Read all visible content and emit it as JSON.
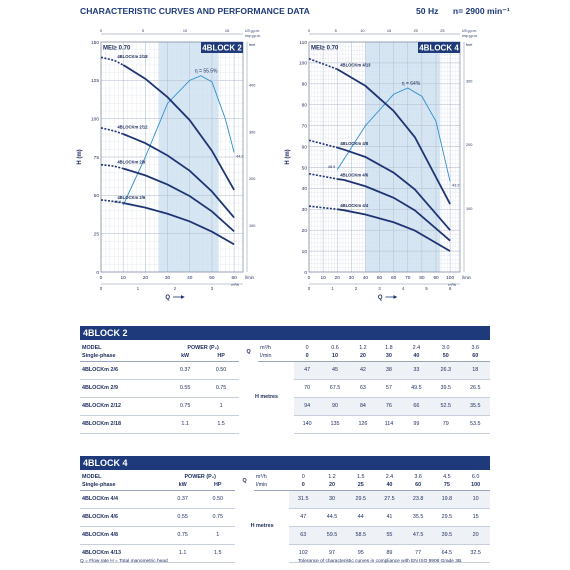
{
  "header": {
    "title": "CHARACTERISTIC CURVES AND PERFORMANCE DATA",
    "frequency": "50 Hz",
    "speed": "n= 2900 min⁻¹"
  },
  "colors": {
    "curve": "#1f3573",
    "eff": "#2e8fcf",
    "band": "#1e3a7a",
    "zone": "#c9deef"
  },
  "chart_data": [
    {
      "type": "line",
      "title": "4BLOCK 2",
      "mei": "MEI≥ 0.70",
      "ylabel": "H (m)",
      "xlabel": "Q",
      "x_unit": "l/min",
      "x_unit2": "m³/h",
      "top_unit_imp": "US g.p.m.",
      "top_unit_imp2": "Imp g.p.m.",
      "right_unit": "feet",
      "xlim": [
        0,
        64
      ],
      "ylim": [
        0,
        150
      ],
      "x_ticks": [
        0,
        10,
        20,
        30,
        40,
        50,
        60
      ],
      "y_ticks": [
        0,
        25,
        50,
        75,
        100,
        125,
        150
      ],
      "m3h_ticks": [
        0,
        1,
        2,
        3
      ],
      "usgpm_ticks": [
        0,
        5,
        10,
        15
      ],
      "feet_ticks": [
        100,
        200,
        300,
        400
      ],
      "zone": [
        26,
        53
      ],
      "efficiency": {
        "label": "η = 55.5%",
        "left": "43.6",
        "right": "44.2",
        "x": [
          10,
          20,
          30,
          40,
          45,
          50,
          56,
          60
        ],
        "y": [
          43.6,
          75,
          110,
          125,
          128,
          124,
          100,
          78
        ]
      },
      "series": [
        {
          "name": "4BLOCKm 2/18",
          "x": [
            0,
            6,
            10,
            20,
            30,
            40,
            50,
            60
          ],
          "y": [
            140,
            138,
            135,
            126,
            114,
            99,
            79,
            53.5
          ]
        },
        {
          "name": "4BLOCKm 2/12",
          "x": [
            0,
            6,
            10,
            20,
            30,
            40,
            50,
            60
          ],
          "y": [
            94,
            92,
            90,
            84,
            76,
            66,
            52.5,
            35.5
          ]
        },
        {
          "name": "4BLOCKm 2/9",
          "x": [
            0,
            6,
            10,
            20,
            30,
            40,
            50,
            60
          ],
          "y": [
            70,
            69,
            67.5,
            63,
            57,
            49.5,
            39.5,
            26.5
          ]
        },
        {
          "name": "4BLOCKm 2/6",
          "x": [
            0,
            6,
            10,
            20,
            30,
            40,
            50,
            60
          ],
          "y": [
            47,
            46,
            45,
            42,
            38,
            33,
            26.3,
            18
          ]
        }
      ]
    },
    {
      "type": "line",
      "title": "4BLOCK 4",
      "mei": "MEI≥ 0.70",
      "ylabel": "H (m)",
      "xlabel": "Q",
      "x_unit": "l/min",
      "x_unit2": "m³/h",
      "top_unit_imp": "US g.p.m.",
      "top_unit_imp2": "Imp g.p.m.",
      "right_unit": "feet",
      "xlim": [
        0,
        107
      ],
      "ylim": [
        0,
        110
      ],
      "x_ticks": [
        0,
        10,
        20,
        30,
        40,
        50,
        60,
        70,
        80,
        90,
        100
      ],
      "y_ticks": [
        0,
        10,
        20,
        30,
        40,
        50,
        60,
        70,
        80,
        90,
        100,
        110
      ],
      "m3h_ticks": [
        0,
        1,
        2,
        3,
        4,
        5,
        6
      ],
      "usgpm_ticks": [
        0,
        5,
        10,
        15,
        20,
        25
      ],
      "feet_ticks": [
        100,
        200,
        300
      ],
      "zone": [
        40,
        93
      ],
      "efficiency": {
        "label": "η = 64%",
        "left": "48.9",
        "right": "43.2",
        "x": [
          20,
          40,
          60,
          70,
          80,
          90,
          100
        ],
        "y": [
          48.9,
          70,
          85,
          88,
          84,
          72,
          43.2
        ]
      },
      "series": [
        {
          "name": "4BLOCKm 4/13",
          "x": [
            0,
            20,
            25,
            40,
            60,
            75,
            100
          ],
          "y": [
            102,
            97,
            95,
            89,
            77,
            64.5,
            32.5
          ]
        },
        {
          "name": "4BLOCKm 4/8",
          "x": [
            0,
            20,
            25,
            40,
            60,
            75,
            100
          ],
          "y": [
            63,
            59.5,
            58.5,
            55,
            47.5,
            39.5,
            20
          ]
        },
        {
          "name": "4BLOCKm 4/6",
          "x": [
            0,
            20,
            25,
            40,
            60,
            75,
            100
          ],
          "y": [
            47,
            44.5,
            44,
            41,
            35.5,
            29.5,
            15
          ]
        },
        {
          "name": "4BLOCKm 4/4",
          "x": [
            0,
            20,
            25,
            40,
            60,
            75,
            100
          ],
          "y": [
            31.5,
            30,
            29.5,
            27.5,
            23.8,
            19.8,
            10
          ]
        }
      ]
    }
  ],
  "tables": [
    {
      "band": "4BLOCK 2",
      "model": "MODEL",
      "single_phase": "Single-phase",
      "power": "POWER (P₂)",
      "kw": "kW",
      "hp": "HP",
      "q": "Q",
      "m3h": "m³/h",
      "lmin": "l/min",
      "h": "H",
      "metres": "metres",
      "m3h_vals": [
        "0",
        "0.6",
        "1.2",
        "1.8",
        "2.4",
        "3.0",
        "3.6"
      ],
      "lmin_vals": [
        "0",
        "10",
        "20",
        "30",
        "40",
        "50",
        "60"
      ],
      "rows": [
        {
          "model": "4BLOCKm 2/6",
          "kw": "0.37",
          "hp": "0.50",
          "h": [
            "47",
            "45",
            "42",
            "38",
            "33",
            "26.3",
            "18"
          ]
        },
        {
          "model": "4BLOCKm 2/9",
          "kw": "0.55",
          "hp": "0.75",
          "h": [
            "70",
            "67.5",
            "63",
            "57",
            "49.5",
            "39.5",
            "26.5"
          ]
        },
        {
          "model": "4BLOCKm 2/12",
          "kw": "0.75",
          "hp": "1",
          "h": [
            "94",
            "90",
            "84",
            "76",
            "66",
            "52.5",
            "35.5"
          ]
        },
        {
          "model": "4BLOCKm 2/18",
          "kw": "1.1",
          "hp": "1.5",
          "h": [
            "140",
            "135",
            "126",
            "114",
            "99",
            "79",
            "53.5"
          ]
        }
      ]
    },
    {
      "band": "4BLOCK 4",
      "model": "MODEL",
      "single_phase": "Single-phase",
      "power": "POWER (P₂)",
      "kw": "kW",
      "hp": "HP",
      "q": "Q",
      "m3h": "m³/h",
      "lmin": "l/min",
      "h": "H",
      "metres": "metres",
      "m3h_vals": [
        "0",
        "1.2",
        "1.5",
        "2.4",
        "3.6",
        "4.5",
        "6.0"
      ],
      "lmin_vals": [
        "0",
        "20",
        "25",
        "40",
        "60",
        "75",
        "100"
      ],
      "rows": [
        {
          "model": "4BLOCKm 4/4",
          "kw": "0.37",
          "hp": "0.50",
          "h": [
            "31.5",
            "30",
            "29.5",
            "27.5",
            "23.8",
            "19.8",
            "10"
          ]
        },
        {
          "model": "4BLOCKm 4/6",
          "kw": "0.55",
          "hp": "0.75",
          "h": [
            "47",
            "44.5",
            "44",
            "41",
            "35.5",
            "29.5",
            "15"
          ]
        },
        {
          "model": "4BLOCKm 4/8",
          "kw": "0.75",
          "hp": "1",
          "h": [
            "63",
            "59.5",
            "58.5",
            "55",
            "47.5",
            "39.5",
            "20"
          ]
        },
        {
          "model": "4BLOCKm 4/13",
          "kw": "1.1",
          "hp": "1.5",
          "h": [
            "102",
            "97",
            "95",
            "89",
            "77",
            "64.5",
            "32.5"
          ]
        }
      ]
    }
  ],
  "footer": {
    "legend": "Q = Flow rate   H = Total manometric head",
    "note": "Tolerance of characteristic curves in compliance with EN ISO 9906 Grade 3B."
  }
}
